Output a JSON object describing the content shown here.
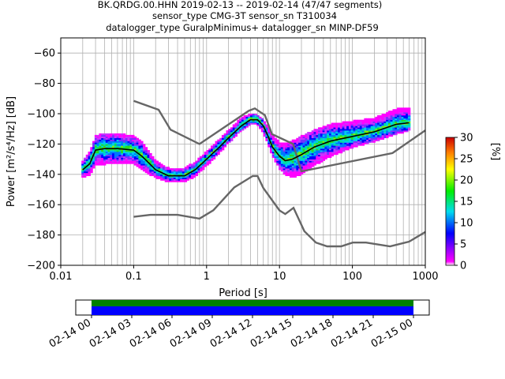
{
  "title": {
    "line1": "BK.QRDG.00.HHN   2019-02-13 -- 2019-02-14  (47/47 segments)",
    "line2": "sensor_type CMG-3T sensor_sn T310034",
    "line3": "datalogger_type GuralpMinimus+ datalogger_sn MINP-DF59"
  },
  "chart_data": {
    "type": "heatmap",
    "xlabel": "Period [s]",
    "ylabel": "Power [m²/s⁴/Hz] [dB]",
    "xscale": "log",
    "xlim": [
      0.01,
      1000
    ],
    "ylim": [
      -200,
      -50
    ],
    "xticks": [
      {
        "value": 0.01,
        "label": "0.01"
      },
      {
        "value": 0.1,
        "label": "0.1"
      },
      {
        "value": 1,
        "label": "1"
      },
      {
        "value": 10,
        "label": "10"
      },
      {
        "value": 100,
        "label": "100"
      },
      {
        "value": 1000,
        "label": "1000"
      }
    ],
    "yticks": [
      -60,
      -80,
      -100,
      -120,
      -140,
      -160,
      -180,
      -200
    ],
    "grid": true,
    "mode_curve": {
      "x": [
        0.02,
        0.025,
        0.03,
        0.04,
        0.06,
        0.1,
        0.13,
        0.2,
        0.3,
        0.5,
        0.7,
        1,
        1.5,
        2,
        3,
        4,
        5,
        6,
        7,
        8,
        10,
        12,
        15,
        20,
        30,
        50,
        100,
        200,
        400,
        600
      ],
      "y": [
        -137,
        -133,
        -124,
        -123,
        -123,
        -124,
        -128,
        -137,
        -141,
        -141,
        -137,
        -130,
        -122,
        -116,
        -108,
        -104,
        -104,
        -108,
        -115,
        -122,
        -128,
        -131,
        -130,
        -127,
        -122,
        -118,
        -115,
        -112,
        -107,
        -106
      ]
    },
    "psd_cloud": {
      "x": [
        0.02,
        0.025,
        0.03,
        0.04,
        0.06,
        0.1,
        0.13,
        0.2,
        0.3,
        0.5,
        0.7,
        1,
        1.5,
        2,
        3,
        4,
        5,
        6,
        7,
        8,
        10,
        12,
        15,
        20,
        30,
        50,
        100,
        200,
        400,
        600
      ],
      "lower": [
        -142,
        -140,
        -134,
        -133,
        -133,
        -133,
        -137,
        -142,
        -145,
        -145,
        -141,
        -134,
        -126,
        -119,
        -111,
        -107,
        -107,
        -112,
        -120,
        -128,
        -136,
        -140,
        -142,
        -140,
        -134,
        -128,
        -122,
        -118,
        -113,
        -111
      ],
      "upper": [
        -132,
        -126,
        -116,
        -114,
        -114,
        -116,
        -120,
        -132,
        -137,
        -137,
        -133,
        -126,
        -118,
        -112,
        -104,
        -101,
        -102,
        -105,
        -110,
        -115,
        -120,
        -121,
        -119,
        -116,
        -112,
        -108,
        -106,
        -104,
        -98,
        -97
      ]
    },
    "nhnm": {
      "x": [
        0.1,
        0.22,
        0.32,
        0.8,
        3.8,
        4.6,
        6.3,
        7.9,
        15.4,
        20,
        354.8,
        1000
      ],
      "y": [
        -91.5,
        -97.4,
        -110.5,
        -120,
        -98,
        -96.5,
        -101,
        -113.5,
        -120,
        -138,
        -126,
        -111
      ]
    },
    "nlnm": {
      "x": [
        0.1,
        0.17,
        0.4,
        0.8,
        1.24,
        2.4,
        4.3,
        5,
        6,
        10,
        12,
        15.6,
        21.9,
        31.6,
        45,
        70,
        101,
        154,
        328,
        600,
        1000
      ],
      "y": [
        -168,
        -166.7,
        -166.7,
        -169.2,
        -163.7,
        -148.6,
        -141.1,
        -141.1,
        -149,
        -163.8,
        -166.2,
        -162.1,
        -177.5,
        -185,
        -187.5,
        -187.5,
        -185,
        -185,
        -187.5,
        -184.4,
        -178
      ]
    },
    "colorbar": {
      "label": "[%]",
      "range": [
        0,
        30
      ],
      "ticks": [
        0,
        5,
        10,
        15,
        20,
        25,
        30
      ]
    },
    "time_coverage": {
      "ticks": [
        "02-14 00",
        "02-14 03",
        "02-14 06",
        "02-14 09",
        "02-14 12",
        "02-14 15",
        "02-14 18",
        "02-14 21",
        "02-15 00"
      ],
      "coverage_start": "02-14 00",
      "coverage_end": "02-15 00",
      "colors": {
        "top": "#008000",
        "bottom": "#0000ff"
      }
    }
  },
  "colors": {
    "mode_line": "#000000",
    "model_lines": "#666666",
    "grid": "#b0b0b0"
  }
}
